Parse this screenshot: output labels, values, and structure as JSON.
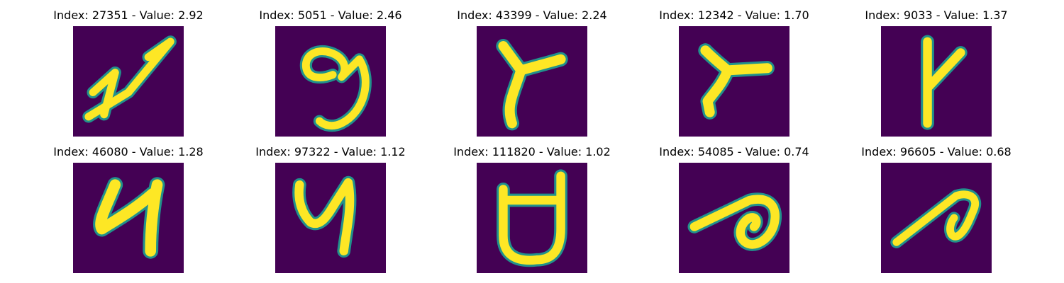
{
  "figure": {
    "colors": {
      "background": "#440154",
      "stroke": "#fde725",
      "edge": "#21918c"
    },
    "panels": [
      {
        "title": "Index: 27351 - Value: 2.92",
        "glyph": "mnist-digit-7-slanted"
      },
      {
        "title": "Index: 5051 - Value: 2.46",
        "glyph": "mnist-digit-9"
      },
      {
        "title": "Index: 43399 - Value: 2.24",
        "glyph": "mnist-y-shape"
      },
      {
        "title": "Index: 12342 - Value: 1.70",
        "glyph": "mnist-y-shape-tilted"
      },
      {
        "title": "Index: 9033 - Value: 1.37",
        "glyph": "mnist-digit-1-forked"
      },
      {
        "title": "Index: 46080 - Value: 1.28",
        "glyph": "mnist-digit-4"
      },
      {
        "title": "Index: 97322 - Value: 1.12",
        "glyph": "mnist-digit-4-open"
      },
      {
        "title": "Index: 111820 - Value: 1.02",
        "glyph": "mnist-digit-4-rounded"
      },
      {
        "title": "Index: 54085 - Value: 0.74",
        "glyph": "mnist-loop-slanted"
      },
      {
        "title": "Index: 96605 - Value: 0.68",
        "glyph": "mnist-loop-slanted-thin"
      }
    ]
  }
}
